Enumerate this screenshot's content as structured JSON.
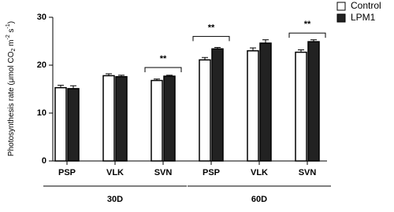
{
  "chart_data": {
    "type": "bar",
    "ylabel_parts": [
      "Photosynthesis rate (μmol CO",
      "2",
      " m",
      "-2",
      " s",
      "-1",
      ")"
    ],
    "categories": [
      "PSP",
      "VLK",
      "SVN",
      "PSP",
      "VLK",
      "SVN"
    ],
    "groups": [
      {
        "label": "30D",
        "size": 3
      },
      {
        "label": "60D",
        "size": 3
      }
    ],
    "series": [
      {
        "name": "Control",
        "color": "#ffffff",
        "values": [
          15.3,
          17.8,
          16.8,
          21.1,
          23.0,
          22.7
        ],
        "errors": [
          0.5,
          0.4,
          0.3,
          0.5,
          0.6,
          0.5
        ]
      },
      {
        "name": "LPM1",
        "color": "#222222",
        "values": [
          15.1,
          17.6,
          17.7,
          23.4,
          24.6,
          24.9
        ],
        "errors": [
          0.6,
          0.3,
          0.2,
          0.3,
          0.7,
          0.4
        ]
      }
    ],
    "annotations": [
      {
        "category": 2,
        "y": 19.5,
        "text": "**"
      },
      {
        "category": 3,
        "y": 26,
        "text": "**"
      },
      {
        "category": 5,
        "y": 26.7,
        "text": "**"
      }
    ],
    "ylim": [
      0,
      30
    ],
    "yticks": [
      0,
      10,
      20,
      30
    ]
  }
}
